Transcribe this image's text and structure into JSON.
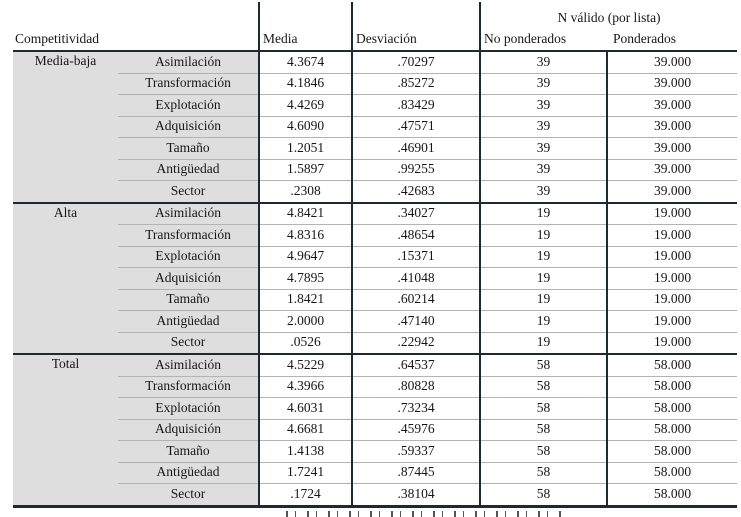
{
  "header": {
    "n_valido_span": "N válido (por lista)",
    "competitividad": "Competitividad",
    "media": "Media",
    "desviacion": "Desviación",
    "no_ponderados": "No ponderados",
    "ponderados": "Ponderados"
  },
  "table": {
    "groups": [
      {
        "label": "Media-baja",
        "rows": [
          {
            "var": "Asimilación",
            "media": "4.3674",
            "desv": ".70297",
            "n": "39",
            "pond": "39.000"
          },
          {
            "var": "Transformación",
            "media": "4.1846",
            "desv": ".85272",
            "n": "39",
            "pond": "39.000"
          },
          {
            "var": "Explotación",
            "media": "4.4269",
            "desv": ".83429",
            "n": "39",
            "pond": "39.000"
          },
          {
            "var": "Adquisición",
            "media": "4.6090",
            "desv": ".47571",
            "n": "39",
            "pond": "39.000"
          },
          {
            "var": "Tamaño",
            "media": "1.2051",
            "desv": ".46901",
            "n": "39",
            "pond": "39.000"
          },
          {
            "var": "Antigüedad",
            "media": "1.5897",
            "desv": ".99255",
            "n": "39",
            "pond": "39.000"
          },
          {
            "var": "Sector",
            "media": ".2308",
            "desv": ".42683",
            "n": "39",
            "pond": "39.000"
          }
        ]
      },
      {
        "label": "Alta",
        "rows": [
          {
            "var": "Asimilación",
            "media": "4.8421",
            "desv": ".34027",
            "n": "19",
            "pond": "19.000"
          },
          {
            "var": "Transformación",
            "media": "4.8316",
            "desv": ".48654",
            "n": "19",
            "pond": "19.000"
          },
          {
            "var": "Explotación",
            "media": "4.9647",
            "desv": ".15371",
            "n": "19",
            "pond": "19.000"
          },
          {
            "var": "Adquisición",
            "media": "4.7895",
            "desv": ".41048",
            "n": "19",
            "pond": "19.000"
          },
          {
            "var": "Tamaño",
            "media": "1.8421",
            "desv": ".60214",
            "n": "19",
            "pond": "19.000"
          },
          {
            "var": "Antigüedad",
            "media": "2.0000",
            "desv": ".47140",
            "n": "19",
            "pond": "19.000"
          },
          {
            "var": "Sector",
            "media": ".0526",
            "desv": ".22942",
            "n": "19",
            "pond": "19.000"
          }
        ]
      },
      {
        "label": "Total",
        "rows": [
          {
            "var": "Asimilación",
            "media": "4.5229",
            "desv": ".64537",
            "n": "58",
            "pond": "58.000"
          },
          {
            "var": "Transformación",
            "media": "4.3966",
            "desv": ".80828",
            "n": "58",
            "pond": "58.000"
          },
          {
            "var": "Explotación",
            "media": "4.6031",
            "desv": ".73234",
            "n": "58",
            "pond": "58.000"
          },
          {
            "var": "Adquisición",
            "media": "4.6681",
            "desv": ".45976",
            "n": "58",
            "pond": "58.000"
          },
          {
            "var": "Tamaño",
            "media": "1.4138",
            "desv": ".59337",
            "n": "58",
            "pond": "58.000"
          },
          {
            "var": "Antigüedad",
            "media": "1.7241",
            "desv": ".87445",
            "n": "58",
            "pond": "58.000"
          },
          {
            "var": "Sector",
            "media": ".1724",
            "desv": ".38104",
            "n": "58",
            "pond": "58.000"
          }
        ]
      }
    ]
  },
  "colors": {
    "label_background": "#dedede",
    "dark_line": "#1c2a33",
    "light_line": "#b3b3b3",
    "text": "#161616"
  }
}
